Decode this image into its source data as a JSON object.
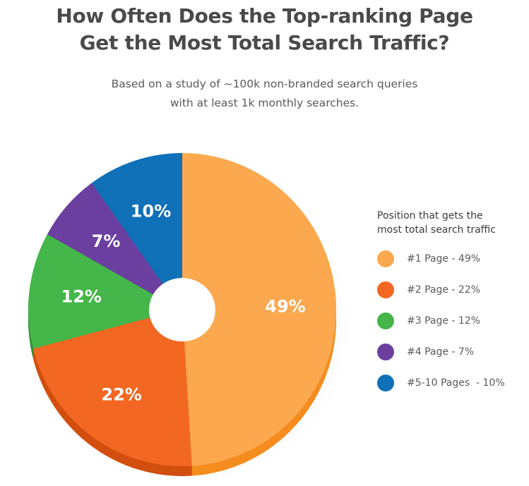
{
  "header": {
    "title_line1": "How Often Does the Top-ranking Page",
    "title_line2": "Get the Most Total Search Traffic?",
    "subtitle_line1": "Based on a study of ~100k non-branded search queries",
    "subtitle_line2": "with at least 1k monthly searches."
  },
  "legend": {
    "title_line1": "Position that gets the",
    "title_line2": "most total search traffic",
    "items": [
      {
        "label": "#1 Page - 49%",
        "color": "#fba84f"
      },
      {
        "label": "#2 Page - 22%",
        "color": "#f26722"
      },
      {
        "label": "#3 Page - 12%",
        "color": "#45b649"
      },
      {
        "label": "#4 Page - 7%",
        "color": "#6b3fa0"
      },
      {
        "label": "#5-10 Pages  - 10%",
        "color": "#1070b8"
      }
    ]
  },
  "chart_data": {
    "type": "pie",
    "style": "3d-donut",
    "categories": [
      "#1 Page",
      "#2 Page",
      "#3 Page",
      "#4 Page",
      "#5-10 Pages"
    ],
    "values": [
      49,
      22,
      12,
      7,
      10
    ],
    "data_labels": [
      "49%",
      "22%",
      "12%",
      "7%",
      "10%"
    ],
    "colors": [
      "#fba84f",
      "#f26722",
      "#45b649",
      "#6b3fa0",
      "#1070b8"
    ],
    "side_colors": [
      "#f58c1e",
      "#d14f0f",
      "#2f8f33",
      "#4e2a7a",
      "#0b5590"
    ],
    "legend_title": "Position that gets the most total search traffic",
    "legend_position": "right"
  }
}
